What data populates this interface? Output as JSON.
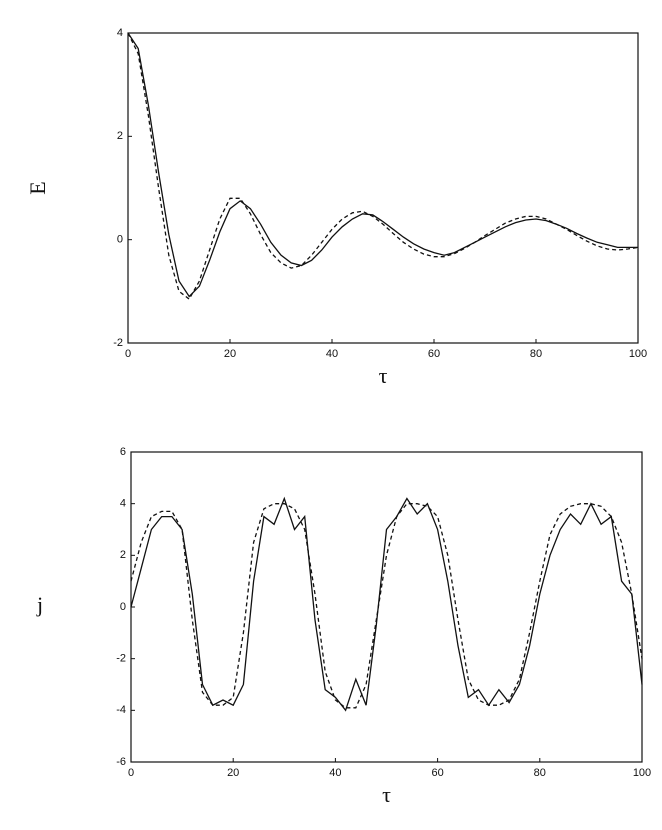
{
  "chart_data": [
    {
      "type": "line",
      "xlabel": "τ",
      "ylabel": "E",
      "x": [
        0,
        2,
        4,
        6,
        8,
        10,
        12,
        14,
        16,
        18,
        20,
        22,
        24,
        26,
        28,
        30,
        32,
        34,
        36,
        38,
        40,
        42,
        44,
        46,
        48,
        50,
        52,
        54,
        56,
        58,
        60,
        62,
        64,
        66,
        68,
        70,
        72,
        74,
        76,
        78,
        80,
        82,
        84,
        86,
        88,
        90,
        92,
        94,
        96,
        98,
        100
      ],
      "series": [
        {
          "color": "#111111",
          "dash": false,
          "values": [
            4,
            3.7,
            2.6,
            1.3,
            0.1,
            -0.8,
            -1.1,
            -0.9,
            -0.4,
            0.15,
            0.6,
            0.75,
            0.6,
            0.3,
            -0.05,
            -0.3,
            -0.45,
            -0.5,
            -0.4,
            -0.2,
            0.05,
            0.25,
            0.4,
            0.5,
            0.48,
            0.35,
            0.2,
            0.05,
            -0.08,
            -0.18,
            -0.25,
            -0.3,
            -0.25,
            -0.15,
            -0.05,
            0.05,
            0.15,
            0.25,
            0.33,
            0.38,
            0.4,
            0.37,
            0.3,
            0.22,
            0.12,
            0.03,
            -0.05,
            -0.1,
            -0.15,
            -0.15,
            -0.15
          ]
        },
        {
          "color": "#111111",
          "dash": true,
          "values": [
            4,
            3.6,
            2.4,
            1.0,
            -0.3,
            -1.0,
            -1.15,
            -0.8,
            -0.2,
            0.4,
            0.8,
            0.8,
            0.5,
            0.1,
            -0.25,
            -0.45,
            -0.55,
            -0.5,
            -0.3,
            -0.05,
            0.2,
            0.4,
            0.52,
            0.55,
            0.45,
            0.3,
            0.12,
            -0.05,
            -0.18,
            -0.28,
            -0.33,
            -0.33,
            -0.27,
            -0.17,
            -0.05,
            0.08,
            0.2,
            0.32,
            0.4,
            0.45,
            0.45,
            0.4,
            0.3,
            0.2,
            0.08,
            -0.03,
            -0.12,
            -0.18,
            -0.2,
            -0.18,
            -0.15
          ]
        }
      ],
      "xlim": [
        0,
        100
      ],
      "ylim": [
        -2,
        4
      ],
      "xticks": [
        0,
        20,
        40,
        60,
        80,
        100
      ],
      "yticks": [
        -2,
        0,
        2,
        4
      ]
    },
    {
      "type": "line",
      "xlabel": "τ",
      "ylabel": "j",
      "x": [
        0,
        2,
        4,
        6,
        8,
        10,
        12,
        14,
        16,
        18,
        20,
        22,
        24,
        26,
        28,
        30,
        32,
        34,
        36,
        38,
        40,
        42,
        44,
        46,
        48,
        50,
        52,
        54,
        56,
        58,
        60,
        62,
        64,
        66,
        68,
        70,
        72,
        74,
        76,
        78,
        80,
        82,
        84,
        86,
        88,
        90,
        92,
        94,
        96,
        98,
        100
      ],
      "series": [
        {
          "color": "#111111",
          "dash": false,
          "values": [
            0,
            1.5,
            3.0,
            3.5,
            3.5,
            3.0,
            0.5,
            -3.0,
            -3.8,
            -3.6,
            -3.8,
            -3.0,
            1.0,
            3.5,
            3.2,
            4.2,
            3.0,
            3.5,
            -0.5,
            -3.2,
            -3.5,
            -4.0,
            -2.8,
            -3.8,
            -0.7,
            3.0,
            3.5,
            4.2,
            3.6,
            4.0,
            3.0,
            1.0,
            -1.5,
            -3.5,
            -3.2,
            -3.8,
            -3.2,
            -3.7,
            -3.0,
            -1.5,
            0.5,
            2.0,
            3.0,
            3.6,
            3.2,
            4.0,
            3.2,
            3.5,
            1.0,
            0.5,
            -3.0
          ]
        },
        {
          "color": "#111111",
          "dash": true,
          "values": [
            1.0,
            2.5,
            3.5,
            3.7,
            3.7,
            3.0,
            -0.5,
            -3.3,
            -3.8,
            -3.8,
            -3.5,
            -1.0,
            2.5,
            3.8,
            4.0,
            4.0,
            3.8,
            3.0,
            0.5,
            -2.5,
            -3.6,
            -3.9,
            -3.9,
            -3.0,
            -0.5,
            2.0,
            3.5,
            4.0,
            4.0,
            3.9,
            3.5,
            2.0,
            -0.5,
            -2.8,
            -3.6,
            -3.8,
            -3.8,
            -3.6,
            -2.8,
            -1.0,
            1.0,
            2.8,
            3.6,
            3.9,
            4.0,
            4.0,
            3.9,
            3.5,
            2.5,
            0.5,
            -2.0
          ]
        }
      ],
      "xlim": [
        0,
        100
      ],
      "ylim": [
        -6,
        6
      ],
      "xticks": [
        0,
        20,
        40,
        60,
        80,
        100
      ],
      "yticks": [
        -6,
        -4,
        -2,
        0,
        2,
        4,
        6
      ]
    }
  ]
}
